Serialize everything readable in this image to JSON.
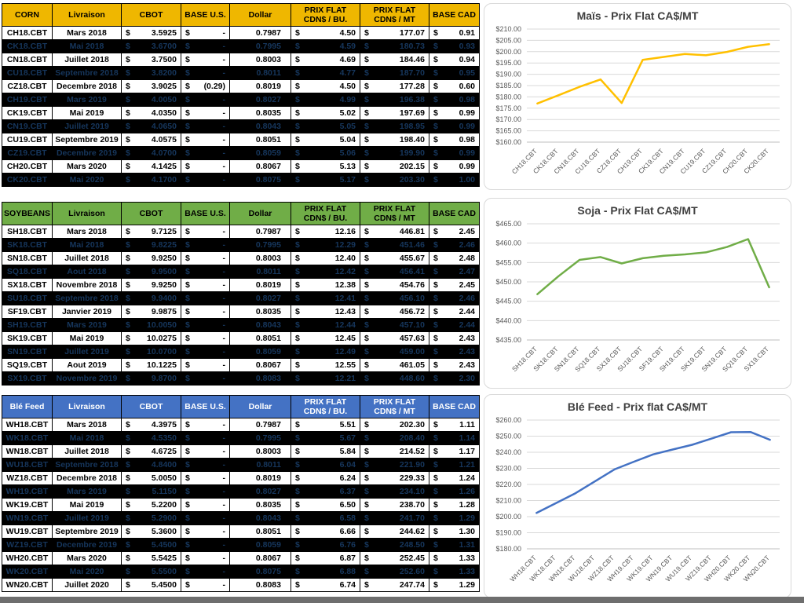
{
  "tables": [
    {
      "name": "corn",
      "header": {
        "bg": "#EFB700",
        "fg": "#000000",
        "cols": [
          {
            "l1": "CORN"
          },
          {
            "l1": "Livraison"
          },
          {
            "l1": "CBOT"
          },
          {
            "l1": "BASE U.S."
          },
          {
            "l1": "Dollar"
          },
          {
            "l1": "PRIX FLAT",
            "l2": "CDN$ / BU."
          },
          {
            "l1": "PRIX FLAT",
            "l2": "CDN$ / MT"
          },
          {
            "l1": "BASE CAD"
          }
        ]
      },
      "rows": [
        {
          "code": "CH18.CBT",
          "livraison": "Mars 2018",
          "cbot": "3.5925",
          "base_us": "-",
          "dollar": "0.7987",
          "flat_bu": "4.50",
          "flat_mt": "177.07",
          "base_cad": "0.91",
          "dark": false
        },
        {
          "code": "CK18.CBT",
          "livraison": "Mai 2018",
          "cbot": "3.6700",
          "base_us": "-",
          "dollar": "0.7995",
          "flat_bu": "4.59",
          "flat_mt": "180.73",
          "base_cad": "0.93",
          "dark": true
        },
        {
          "code": "CN18.CBT",
          "livraison": "Juillet 2018",
          "cbot": "3.7500",
          "base_us": "-",
          "dollar": "0.8003",
          "flat_bu": "4.69",
          "flat_mt": "184.46",
          "base_cad": "0.94",
          "dark": false
        },
        {
          "code": "CU18.CBT",
          "livraison": "Septembre 2018",
          "cbot": "3.8200",
          "base_us": "-",
          "dollar": "0.8011",
          "flat_bu": "4.77",
          "flat_mt": "187.70",
          "base_cad": "0.95",
          "dark": true
        },
        {
          "code": "CZ18.CBT",
          "livraison": "Decembre 2018",
          "cbot": "3.9025",
          "base_us": "(0.29)",
          "dollar": "0.8019",
          "flat_bu": "4.50",
          "flat_mt": "177.28",
          "base_cad": "0.60",
          "dark": false
        },
        {
          "code": "CH19.CBT",
          "livraison": "Mars 2019",
          "cbot": "4.0050",
          "base_us": "-",
          "dollar": "0.8027",
          "flat_bu": "4.99",
          "flat_mt": "196.38",
          "base_cad": "0.98",
          "dark": true
        },
        {
          "code": "CK19.CBT",
          "livraison": "Mai 2019",
          "cbot": "4.0350",
          "base_us": "-",
          "dollar": "0.8035",
          "flat_bu": "5.02",
          "flat_mt": "197.69",
          "base_cad": "0.99",
          "dark": false
        },
        {
          "code": "CN19.CBT",
          "livraison": "Juillet 2019",
          "cbot": "4.0650",
          "base_us": "-",
          "dollar": "0.8043",
          "flat_bu": "5.05",
          "flat_mt": "198.95",
          "base_cad": "0.99",
          "dark": true
        },
        {
          "code": "CU19.CBT",
          "livraison": "Septembre 2019",
          "cbot": "4.0575",
          "base_us": "-",
          "dollar": "0.8051",
          "flat_bu": "5.04",
          "flat_mt": "198.40",
          "base_cad": "0.98",
          "dark": false
        },
        {
          "code": "CZ19.CBT",
          "livraison": "Decembre 2019",
          "cbot": "4.0700",
          "base_us": "-",
          "dollar": "0.8059",
          "flat_bu": "5.06",
          "flat_mt": "199.90",
          "base_cad": "0.99",
          "dark": true
        },
        {
          "code": "CH20.CBT",
          "livraison": "Mars 2020",
          "cbot": "4.1425",
          "base_us": "-",
          "dollar": "0.8067",
          "flat_bu": "5.13",
          "flat_mt": "202.15",
          "base_cad": "0.99",
          "dark": false
        },
        {
          "code": "CK20.CBT",
          "livraison": "Mai 2020",
          "cbot": "4.1700",
          "base_us": "-",
          "dollar": "0.8075",
          "flat_bu": "5.17",
          "flat_mt": "203.30",
          "base_cad": "1.00",
          "dark": true
        }
      ]
    },
    {
      "name": "soybeans",
      "header": {
        "bg": "#70AD47",
        "fg": "#000000",
        "cols": [
          {
            "l1": "SOYBEANS"
          },
          {
            "l1": "Livraison"
          },
          {
            "l1": "CBOT"
          },
          {
            "l1": "BASE U.S."
          },
          {
            "l1": "Dollar"
          },
          {
            "l1": "PRIX FLAT",
            "l2": "CDN$ / BU."
          },
          {
            "l1": "PRIX FLAT",
            "l2": "CDN$ / MT"
          },
          {
            "l1": "BASE CAD"
          }
        ]
      },
      "rows": [
        {
          "code": "SH18.CBT",
          "livraison": "Mars 2018",
          "cbot": "9.7125",
          "base_us": "-",
          "dollar": "0.7987",
          "flat_bu": "12.16",
          "flat_mt": "446.81",
          "base_cad": "2.45",
          "dark": false
        },
        {
          "code": "SK18.CBT",
          "livraison": "Mai 2018",
          "cbot": "9.8225",
          "base_us": "-",
          "dollar": "0.7995",
          "flat_bu": "12.29",
          "flat_mt": "451.46",
          "base_cad": "2.46",
          "dark": true
        },
        {
          "code": "SN18.CBT",
          "livraison": "Juillet 2018",
          "cbot": "9.9250",
          "base_us": "-",
          "dollar": "0.8003",
          "flat_bu": "12.40",
          "flat_mt": "455.67",
          "base_cad": "2.48",
          "dark": false
        },
        {
          "code": "SQ18.CBT",
          "livraison": "Aout 2018",
          "cbot": "9.9500",
          "base_us": "-",
          "dollar": "0.8011",
          "flat_bu": "12.42",
          "flat_mt": "456.41",
          "base_cad": "2.47",
          "dark": true
        },
        {
          "code": "SX18.CBT",
          "livraison": "Novembre 2018",
          "cbot": "9.9250",
          "base_us": "-",
          "dollar": "0.8019",
          "flat_bu": "12.38",
          "flat_mt": "454.76",
          "base_cad": "2.45",
          "dark": false
        },
        {
          "code": "SU18.CBT",
          "livraison": "Septembre 2018",
          "cbot": "9.9400",
          "base_us": "-",
          "dollar": "0.8027",
          "flat_bu": "12.41",
          "flat_mt": "456.10",
          "base_cad": "2.46",
          "dark": true
        },
        {
          "code": "SF19.CBT",
          "livraison": "Janvier 2019",
          "cbot": "9.9875",
          "base_us": "-",
          "dollar": "0.8035",
          "flat_bu": "12.43",
          "flat_mt": "456.72",
          "base_cad": "2.44",
          "dark": false
        },
        {
          "code": "SH19.CBT",
          "livraison": "Mars 2019",
          "cbot": "10.0050",
          "base_us": "-",
          "dollar": "0.8043",
          "flat_bu": "12.44",
          "flat_mt": "457.10",
          "base_cad": "2.44",
          "dark": true
        },
        {
          "code": "SK19.CBT",
          "livraison": "Mai 2019",
          "cbot": "10.0275",
          "base_us": "-",
          "dollar": "0.8051",
          "flat_bu": "12.45",
          "flat_mt": "457.63",
          "base_cad": "2.43",
          "dark": false
        },
        {
          "code": "SN19.CBT",
          "livraison": "Juillet 2019",
          "cbot": "10.0700",
          "base_us": "-",
          "dollar": "0.8059",
          "flat_bu": "12.49",
          "flat_mt": "459.00",
          "base_cad": "2.43",
          "dark": true
        },
        {
          "code": "SQ19.CBT",
          "livraison": "Aout 2019",
          "cbot": "10.1225",
          "base_us": "-",
          "dollar": "0.8067",
          "flat_bu": "12.55",
          "flat_mt": "461.05",
          "base_cad": "2.43",
          "dark": false
        },
        {
          "code": "SX19.CBT",
          "livraison": "Novembre 2019",
          "cbot": "9.8700",
          "base_us": "-",
          "dollar": "0.8083",
          "flat_bu": "12.21",
          "flat_mt": "448.60",
          "base_cad": "2.30",
          "dark": true
        }
      ]
    },
    {
      "name": "ble-feed",
      "header": {
        "bg": "#4472C4",
        "fg": "#FFFFFF",
        "cols": [
          {
            "l1": "Blé Feed"
          },
          {
            "l1": "Livraison"
          },
          {
            "l1": "CBOT"
          },
          {
            "l1": "BASE U.S."
          },
          {
            "l1": "Dollar"
          },
          {
            "l1": "PRIX FLAT",
            "l2": "CDN$ / BU."
          },
          {
            "l1": "PRIX FLAT",
            "l2": "CDN$ / MT"
          },
          {
            "l1": "BASE CAD"
          }
        ]
      },
      "rows": [
        {
          "code": "WH18.CBT",
          "livraison": "Mars 2018",
          "cbot": "4.3975",
          "base_us": "-",
          "dollar": "0.7987",
          "flat_bu": "5.51",
          "flat_mt": "202.30",
          "base_cad": "1.11",
          "dark": false
        },
        {
          "code": "WK18.CBT",
          "livraison": "Mai 2018",
          "cbot": "4.5350",
          "base_us": "-",
          "dollar": "0.7995",
          "flat_bu": "5.67",
          "flat_mt": "208.40",
          "base_cad": "1.14",
          "dark": true
        },
        {
          "code": "WN18.CBT",
          "livraison": "Juillet 2018",
          "cbot": "4.6725",
          "base_us": "-",
          "dollar": "0.8003",
          "flat_bu": "5.84",
          "flat_mt": "214.52",
          "base_cad": "1.17",
          "dark": false
        },
        {
          "code": "WU18.CBT",
          "livraison": "Septembre 2018",
          "cbot": "4.8400",
          "base_us": "-",
          "dollar": "0.8011",
          "flat_bu": "6.04",
          "flat_mt": "221.90",
          "base_cad": "1.21",
          "dark": true
        },
        {
          "code": "WZ18.CBT",
          "livraison": "Decembre 2018",
          "cbot": "5.0050",
          "base_us": "-",
          "dollar": "0.8019",
          "flat_bu": "6.24",
          "flat_mt": "229.33",
          "base_cad": "1.24",
          "dark": false
        },
        {
          "code": "WH19.CBT",
          "livraison": "Mars 2019",
          "cbot": "5.1150",
          "base_us": "-",
          "dollar": "0.8027",
          "flat_bu": "6.37",
          "flat_mt": "234.10",
          "base_cad": "1.26",
          "dark": true
        },
        {
          "code": "WK19.CBT",
          "livraison": "Mai 2019",
          "cbot": "5.2200",
          "base_us": "-",
          "dollar": "0.8035",
          "flat_bu": "6.50",
          "flat_mt": "238.70",
          "base_cad": "1.28",
          "dark": false
        },
        {
          "code": "WN19.CBT",
          "livraison": "Juillet 2019",
          "cbot": "5.2900",
          "base_us": "-",
          "dollar": "0.8043",
          "flat_bu": "6.58",
          "flat_mt": "241.70",
          "base_cad": "1.29",
          "dark": true
        },
        {
          "code": "WU19.CBT",
          "livraison": "Septembre 2019",
          "cbot": "5.3600",
          "base_us": "-",
          "dollar": "0.8051",
          "flat_bu": "6.66",
          "flat_mt": "244.62",
          "base_cad": "1.30",
          "dark": false
        },
        {
          "code": "WZ19.CBT",
          "livraison": "Decembre 2019",
          "cbot": "5.4500",
          "base_us": "-",
          "dollar": "0.8059",
          "flat_bu": "6.76",
          "flat_mt": "248.50",
          "base_cad": "1.31",
          "dark": true
        },
        {
          "code": "WH20.CBT",
          "livraison": "Mars 2020",
          "cbot": "5.5425",
          "base_us": "-",
          "dollar": "0.8067",
          "flat_bu": "6.87",
          "flat_mt": "252.45",
          "base_cad": "1.33",
          "dark": false
        },
        {
          "code": "WK20.CBT",
          "livraison": "Mai 2020",
          "cbot": "5.5500",
          "base_us": "-",
          "dollar": "0.8075",
          "flat_bu": "6.88",
          "flat_mt": "252.60",
          "base_cad": "1.33",
          "dark": true
        },
        {
          "code": "WN20.CBT",
          "livraison": "Juillet 2020",
          "cbot": "5.4500",
          "base_us": "-",
          "dollar": "0.8083",
          "flat_bu": "6.74",
          "flat_mt": "247.74",
          "base_cad": "1.29",
          "dark": false
        }
      ]
    }
  ],
  "chart_data": [
    {
      "type": "line",
      "title": "Maïs - Prix Flat CA$/MT",
      "series_name": "corn-price-line",
      "categories": [
        "CH18.CBT",
        "CK18.CBT",
        "CN18.CBT",
        "CU18.CBT",
        "CZ18.CBT",
        "CH19.CBT",
        "CK19.CBT",
        "CN19.CBT",
        "CU19.CBT",
        "CZ19.CBT",
        "CH20.CBT",
        "CK20.CBT"
      ],
      "values": [
        177.07,
        180.73,
        184.46,
        187.7,
        177.28,
        196.38,
        197.69,
        198.95,
        198.4,
        199.9,
        202.15,
        203.3
      ],
      "xlabel": "",
      "ylabel": "",
      "ylim": [
        160,
        210
      ],
      "ytick_step": 5,
      "grid": true,
      "legend": false,
      "line_color": "#FFC000"
    },
    {
      "type": "line",
      "title": "Soja - Prix Flat CA$/MT",
      "series_name": "soybean-price-line",
      "categories": [
        "SH18.CBT",
        "SK18.CBT",
        "SN18.CBT",
        "SQ18.CBT",
        "SX18.CBT",
        "SU18.CBT",
        "SF19.CBT",
        "SH19.CBT",
        "SK19.CBT",
        "SN19.CBT",
        "SQ19.CBT",
        "SX19.CBT"
      ],
      "values": [
        446.81,
        451.46,
        455.67,
        456.41,
        454.76,
        456.1,
        456.72,
        457.1,
        457.63,
        459.0,
        461.05,
        448.6
      ],
      "xlabel": "",
      "ylabel": "",
      "ylim": [
        435,
        465
      ],
      "ytick_step": 5,
      "grid": true,
      "legend": false,
      "line_color": "#70AD47"
    },
    {
      "type": "line",
      "title": "Blé Feed - Prix flat CA$/MT",
      "series_name": "wheat-price-line",
      "categories": [
        "WH18.CBT",
        "WK18.CBT",
        "WN18.CBT",
        "WU18.CBT",
        "WZ18.CBT",
        "WH19.CBT",
        "WK19.CBT",
        "WN19.CBT",
        "WU19.CBT",
        "WZ19.CBT",
        "WH20.CBT",
        "WK20.CBT",
        "WN20.CBT"
      ],
      "values": [
        202.3,
        208.4,
        214.52,
        221.9,
        229.33,
        234.1,
        238.7,
        241.7,
        244.62,
        248.5,
        252.45,
        252.6,
        247.74
      ],
      "xlabel": "",
      "ylabel": "",
      "ylim": [
        180,
        260
      ],
      "ytick_step": 10,
      "grid": true,
      "legend": false,
      "line_color": "#4472C4"
    }
  ],
  "colors": {
    "grid_line": "#D9D9D9",
    "axis_line": "#BFBFBF",
    "axis_text": "#595959",
    "title_text": "#404040",
    "dark_row_bg": "#000000",
    "dark_row_text": "#16365C"
  }
}
